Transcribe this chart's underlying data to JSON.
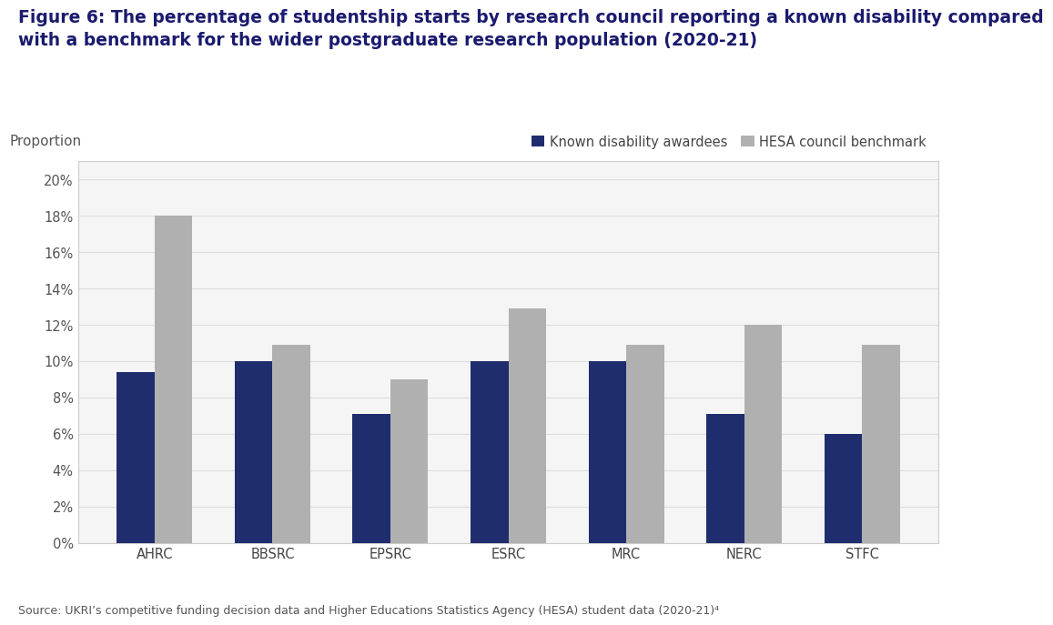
{
  "title_line1": "Figure 6: The percentage of studentship starts by research council reporting a known disability compared",
  "title_line2": "with a benchmark for the wider postgraduate research population (2020-21)",
  "categories": [
    "AHRC",
    "BBSRC",
    "EPSRC",
    "ESRC",
    "MRC",
    "NERC",
    "STFC"
  ],
  "disability_values": [
    0.094,
    0.1,
    0.071,
    0.1,
    0.1,
    0.071,
    0.06
  ],
  "benchmark_values": [
    0.18,
    0.109,
    0.09,
    0.129,
    0.109,
    0.12,
    0.109
  ],
  "disability_color": "#1f2d6e",
  "benchmark_color": "#b0b0b0",
  "proportion_label": "Proportion",
  "ylim": [
    0,
    0.21
  ],
  "yticks": [
    0.0,
    0.02,
    0.04,
    0.06,
    0.08,
    0.1,
    0.12,
    0.14,
    0.16,
    0.18,
    0.2
  ],
  "legend_labels": [
    "Known disability awardees",
    "HESA council benchmark"
  ],
  "source_text": "Source: UKRI’s competitive funding decision data and Higher Educations Statistics Agency (HESA) student data (2020-21)⁴",
  "background_color": "#ffffff",
  "plot_bg_color": "#f5f5f5",
  "bar_width": 0.32,
  "title_fontsize": 13.5,
  "tick_fontsize": 10.5,
  "legend_fontsize": 10.5,
  "source_fontsize": 9,
  "proportion_fontsize": 11
}
